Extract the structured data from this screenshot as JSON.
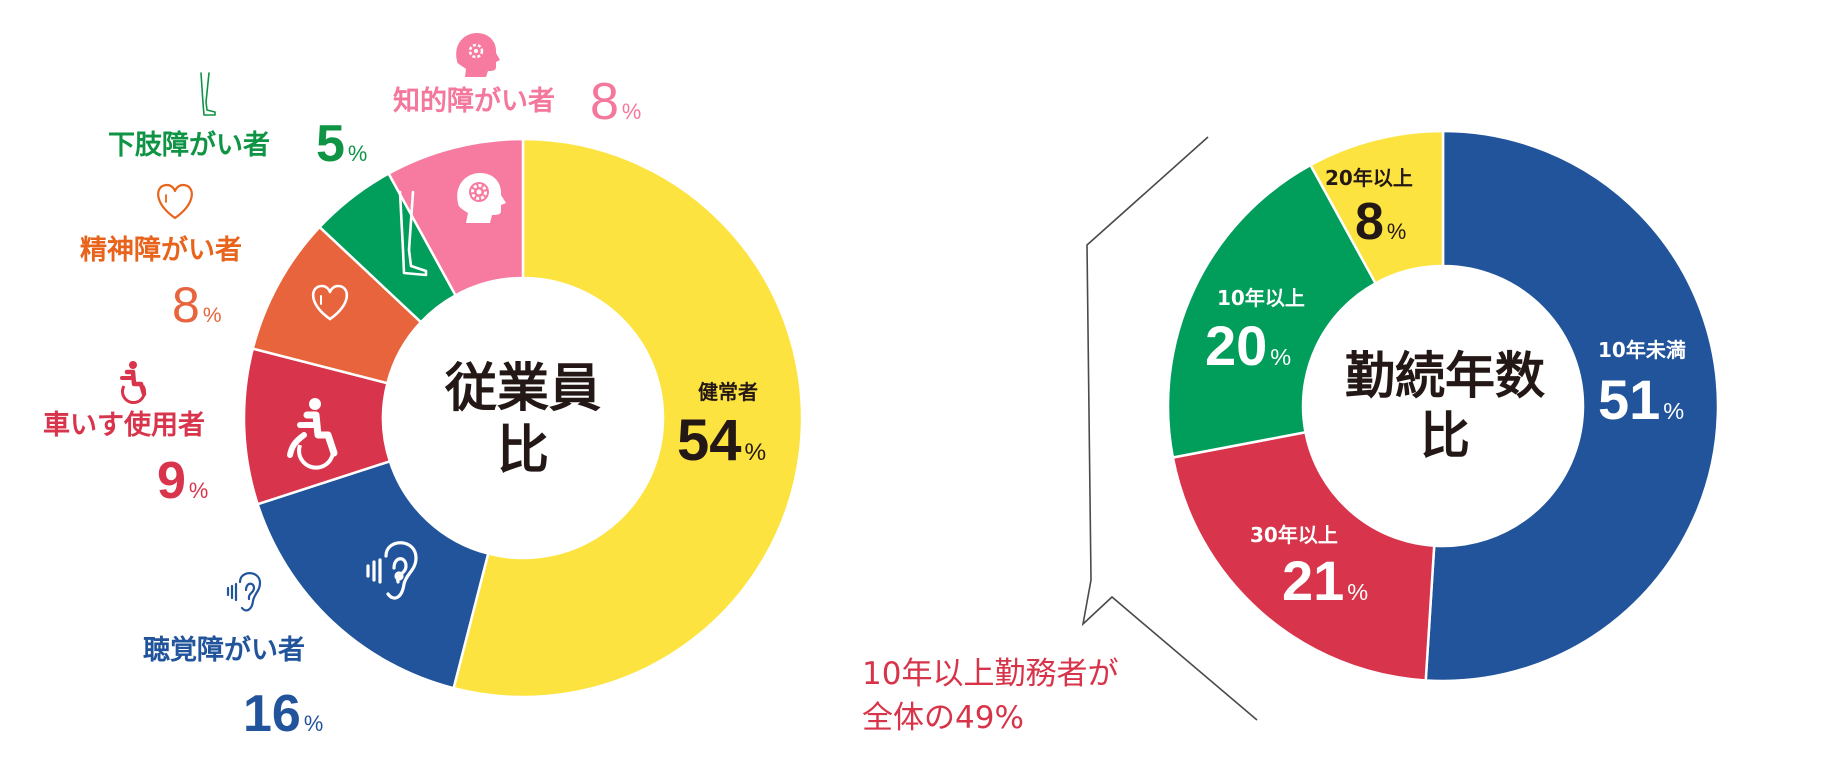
{
  "chart_data": [
    {
      "type": "pie",
      "subtype": "donut",
      "title": "従業員比",
      "categories": [
        "健常者",
        "聴覚障がい者",
        "車いす使用者",
        "精神障がい者",
        "下肢障がい者",
        "知的障がい者"
      ],
      "values": [
        54,
        16,
        9,
        8,
        5,
        8
      ],
      "unit": "%",
      "colors": [
        "#fde33f",
        "#22549b",
        "#d8344b",
        "#e8643d",
        "#019d5b",
        "#f77ba0"
      ],
      "icons": [
        "",
        "ear-icon",
        "wheelchair-icon",
        "heart-icon",
        "leg-icon",
        "head-gear-icon"
      ],
      "start_angle": "12 o'clock, clockwise"
    },
    {
      "type": "pie",
      "subtype": "donut",
      "title": "勤続年数比",
      "categories": [
        "10年未満",
        "30年以上",
        "10年以上",
        "20年以上"
      ],
      "values": [
        51,
        21,
        20,
        8
      ],
      "unit": "%",
      "colors": [
        "#22549b",
        "#d8344b",
        "#019d5b",
        "#fde33f"
      ],
      "start_angle": "12 o'clock, clockwise",
      "annotation": "10年以上勤務者が全体の49%"
    }
  ],
  "left_chart": {
    "title_line1": "従業員",
    "title_line2": "比",
    "inner_labels": {
      "healthy": {
        "label": "健常者",
        "value": "54",
        "pct": "%"
      }
    },
    "outer_labels": {
      "intellectual": {
        "label": "知的障がい者",
        "value": "8",
        "pct": "%",
        "color": "#f4779c"
      },
      "lower_limb": {
        "label": "下肢障がい者",
        "value": "5",
        "pct": "%",
        "color": "#0e9444"
      },
      "mental": {
        "label": "精神障がい者",
        "value": "8",
        "pct": "%",
        "color": "#e8641c",
        "num_color": "#e8643d"
      },
      "wheelchair": {
        "label": "車いす使用者",
        "value": "9",
        "pct": "%",
        "color": "#d8344b"
      },
      "hearing": {
        "label": "聴覚障がい者",
        "value": "16",
        "pct": "%",
        "color": "#22549b"
      }
    }
  },
  "right_chart": {
    "title_line1": "勤続年数",
    "title_line2": "比",
    "segments": {
      "under10": {
        "label": "10年未満",
        "value": "51",
        "pct": "%"
      },
      "over30": {
        "label": "30年以上",
        "value": "21",
        "pct": "%"
      },
      "over10": {
        "label": "10年以上",
        "value": "20",
        "pct": "%"
      },
      "over20": {
        "label": "20年以上",
        "value": "8",
        "pct": "%"
      }
    }
  },
  "callout": {
    "line1": "10年以上勤務者が",
    "line2": "全体の49%",
    "color": "#d7344a"
  }
}
